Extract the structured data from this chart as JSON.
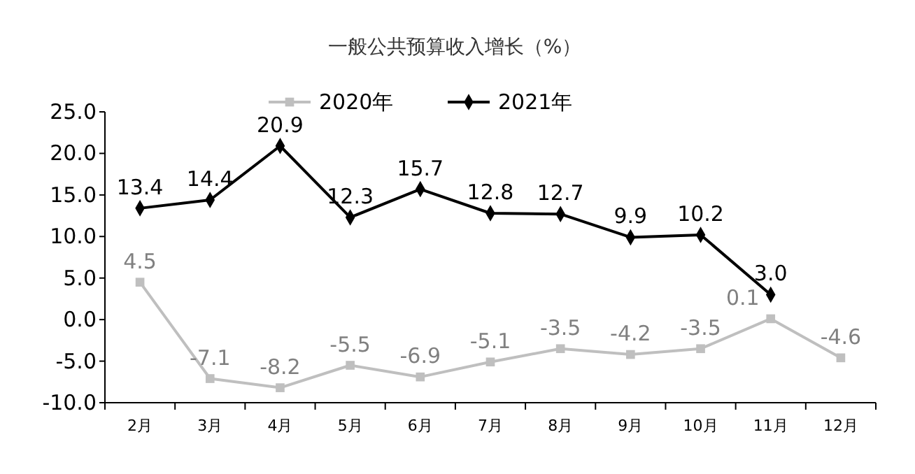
{
  "chart_data": {
    "type": "line",
    "title": "一般公共预算收入增长（%）",
    "categories": [
      "2月",
      "3月",
      "4月",
      "5月",
      "6月",
      "7月",
      "8月",
      "9月",
      "10月",
      "11月",
      "12月"
    ],
    "series": [
      {
        "name": "2020年",
        "color": "#bfbfbf",
        "marker": "square",
        "values": [
          4.5,
          -7.1,
          -8.2,
          -5.5,
          -6.9,
          -5.1,
          -3.5,
          -4.2,
          -3.5,
          0.1,
          -4.6
        ],
        "value_labels": [
          "4.5",
          "-7.1",
          "-8.2",
          "-5.5",
          "-6.9",
          "-5.1",
          "-3.5",
          "-4.2",
          "-3.5",
          "0.1",
          "-4.6"
        ]
      },
      {
        "name": "2021年",
        "color": "#000000",
        "marker": "diamond",
        "values": [
          13.4,
          14.4,
          20.9,
          12.3,
          15.7,
          12.8,
          12.7,
          9.9,
          10.2,
          3.0,
          null
        ],
        "value_labels": [
          "13.4",
          "14.4",
          "20.9",
          "12.3",
          "15.7",
          "12.8",
          "12.7",
          "9.9",
          "10.2",
          "3.0",
          null
        ]
      }
    ],
    "ylim": [
      -10,
      25
    ],
    "yticks": [
      {
        "value": -10,
        "label": "-10.0"
      },
      {
        "value": -5,
        "label": "-5.0"
      },
      {
        "value": 0,
        "label": "0.0"
      },
      {
        "value": 5,
        "label": "5.0"
      },
      {
        "value": 10,
        "label": "10.0"
      },
      {
        "value": 15,
        "label": "15.0"
      },
      {
        "value": 20,
        "label": "20.0"
      },
      {
        "value": 25,
        "label": "25.0"
      }
    ],
    "grid": false,
    "legend": "top",
    "line_style": "solid"
  }
}
